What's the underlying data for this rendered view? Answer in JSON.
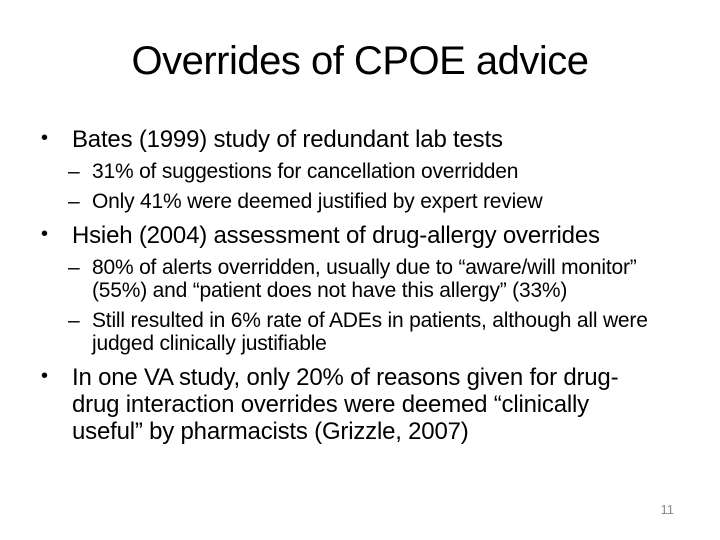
{
  "slide": {
    "title": "Overrides of CPOE advice",
    "page_number": "11",
    "markers": {
      "level1": "•",
      "level2": "–"
    },
    "colors": {
      "background": "#ffffff",
      "text": "#000000",
      "page_number": "#8a8a8a"
    },
    "bullets": [
      {
        "text": "Bates (1999) study of redundant lab tests",
        "children": [
          "31% of suggestions for cancellation overridden",
          "Only 41% were deemed justified by expert review"
        ]
      },
      {
        "text": "Hsieh (2004) assessment of drug-allergy overrides",
        "children": [
          "80% of alerts overridden, usually due to “aware/will monitor” (55%) and “patient does not have this allergy” (33%)",
          "Still resulted in 6% rate of ADEs in patients, although all were judged clinically justifiable"
        ]
      },
      {
        "text": "In one VA study, only 20% of reasons given for drug-drug interaction overrides were deemed “clinically useful” by pharmacists (Grizzle, 2007)",
        "children": []
      }
    ]
  }
}
